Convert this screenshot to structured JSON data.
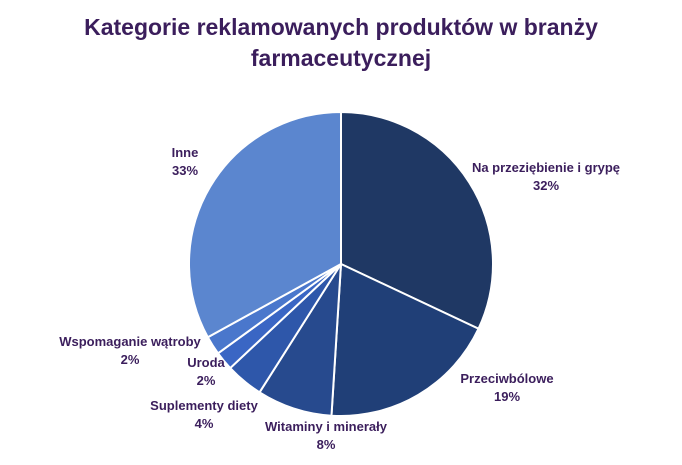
{
  "chart_data": {
    "type": "pie",
    "title_lines": [
      "Kategorie reklamowanych produktów w branży",
      "farmaceutycznej"
    ],
    "start_angle_deg": 0,
    "direction": "clockwise",
    "legend": "none",
    "slices": [
      {
        "label": "Na przeziębienie i grypę",
        "value": 32,
        "value_text": "32%",
        "color": "#1f3864"
      },
      {
        "label": "Przeciwbólowe",
        "value": 19,
        "value_text": "19%",
        "color": "#203f77"
      },
      {
        "label": "Witaminy i minerały",
        "value": 8,
        "value_text": "8%",
        "color": "#274a8e"
      },
      {
        "label": "Suplementy diety",
        "value": 4,
        "value_text": "4%",
        "color": "#2e57aa"
      },
      {
        "label": "Uroda",
        "value": 2,
        "value_text": "2%",
        "color": "#3a66c4"
      },
      {
        "label": "Wspomaganie wątroby",
        "value": 2,
        "value_text": "2%",
        "color": "#4a77cc"
      },
      {
        "label": "Inne",
        "value": 33,
        "value_text": "33%",
        "color": "#5b86cf"
      }
    ]
  }
}
